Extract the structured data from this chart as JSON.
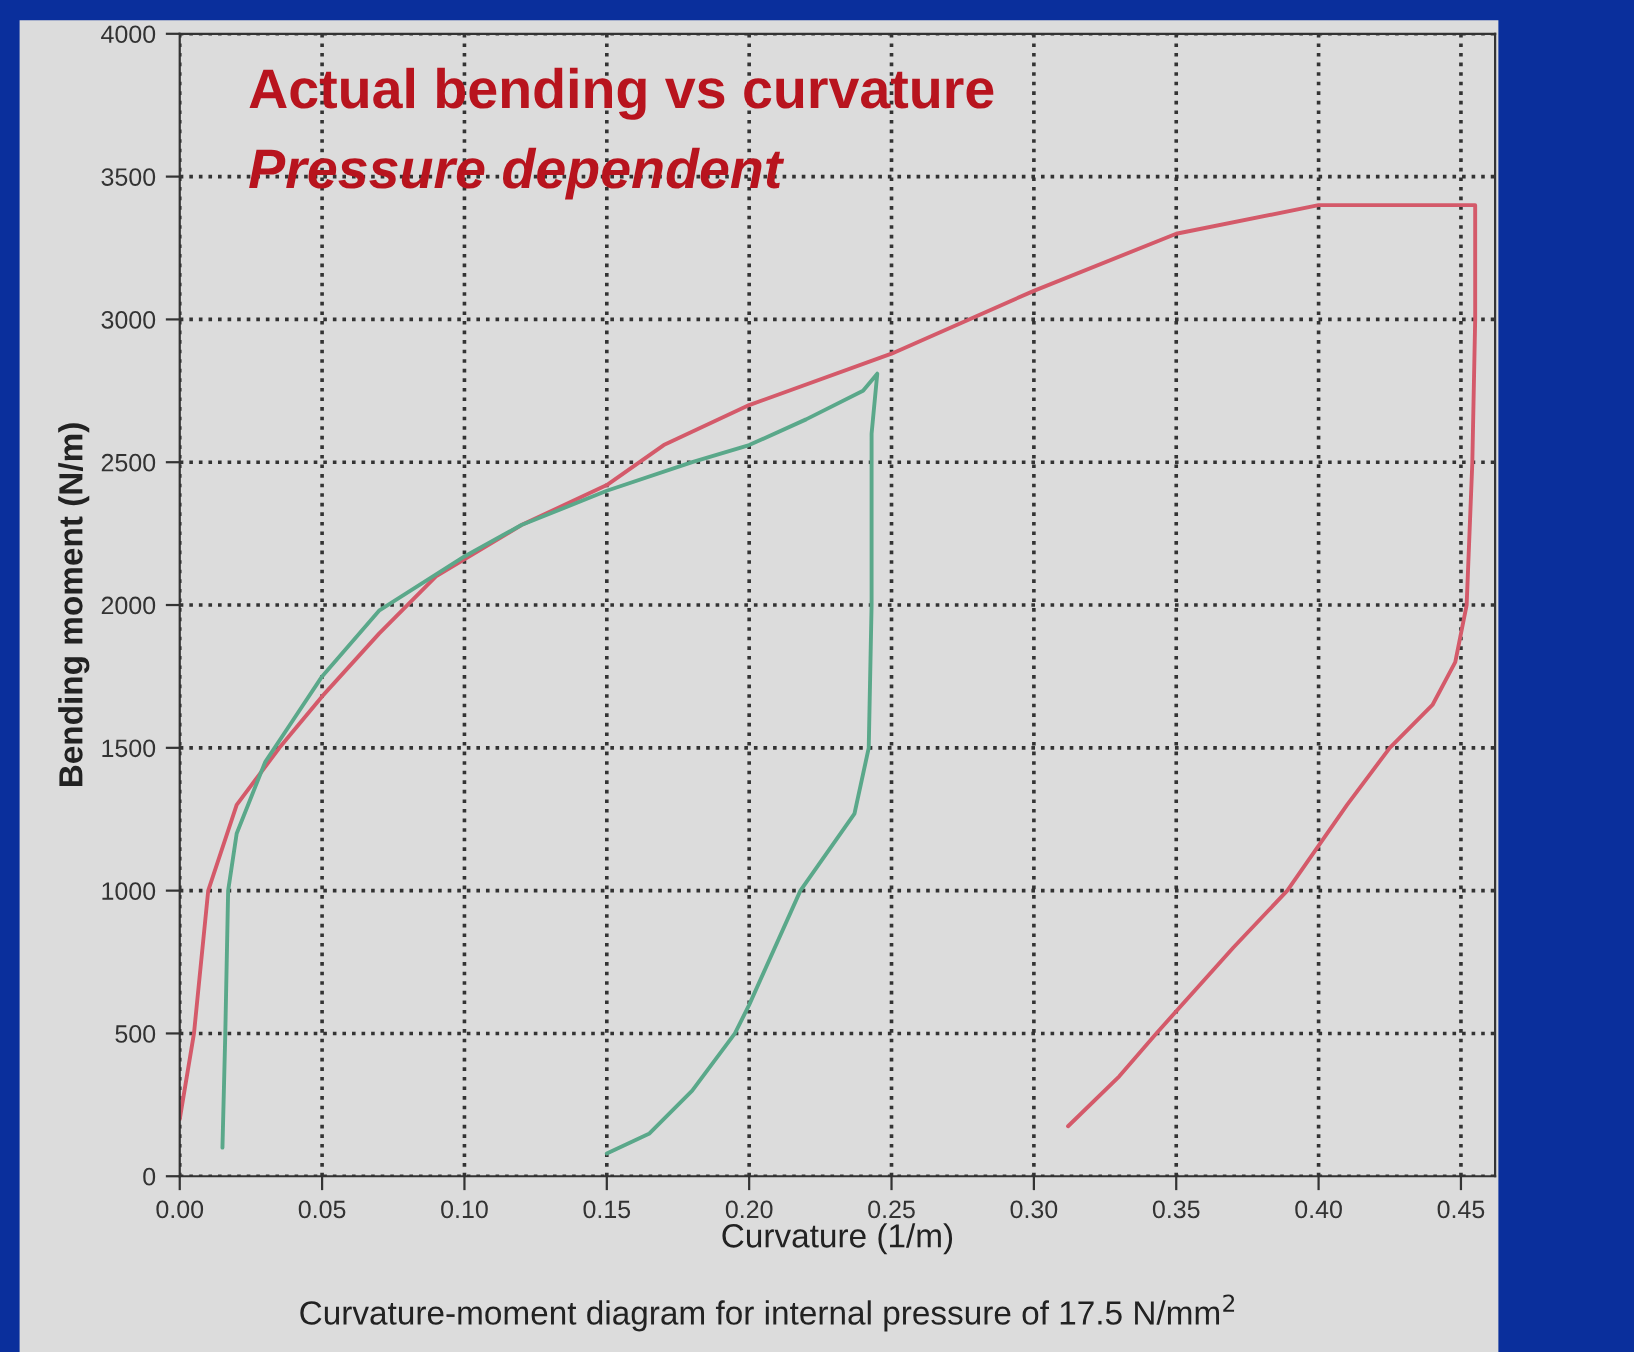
{
  "chart_data": {
    "type": "line",
    "title": "Actual bending vs curvature",
    "subtitle": "Pressure dependent",
    "xlabel": "Curvature (1/m)",
    "ylabel": "Bending moment (N/m)",
    "annotations": [
      "Curvature-moment diagram for internal pressure of 17.5 N/mm$^{2}$"
    ],
    "series": [
      {
        "color": "#d45a6a",
        "x": [
          0.0,
          0.005,
          0.01,
          0.02,
          0.035,
          0.05,
          0.07,
          0.09,
          0.12,
          0.15,
          0.17,
          0.2,
          0.25,
          0.3,
          0.35,
          0.4,
          0.455,
          0.455,
          0.454,
          0.452,
          0.448,
          0.44,
          0.425,
          0.41,
          0.389,
          0.37,
          0.343,
          0.33,
          0.312
        ],
        "values": [
          200,
          500,
          1000,
          1300,
          1500,
          1680,
          1900,
          2100,
          2280,
          2420,
          2560,
          2700,
          2880,
          3100,
          3300,
          3400,
          3400,
          3000,
          2500,
          2000,
          1800,
          1650,
          1500,
          1300,
          1000,
          800,
          500,
          350,
          175
        ]
      },
      {
        "color": "#5aa88a",
        "x": [
          0.015,
          0.016,
          0.017,
          0.02,
          0.03,
          0.04,
          0.05,
          0.07,
          0.1,
          0.12,
          0.15,
          0.18,
          0.2,
          0.22,
          0.24,
          0.245,
          0.243,
          0.243,
          0.242,
          0.237,
          0.218,
          0.2,
          0.195,
          0.18,
          0.165,
          0.15
        ],
        "values": [
          100,
          500,
          1000,
          1200,
          1450,
          1600,
          1750,
          1980,
          2170,
          2280,
          2400,
          2500,
          2560,
          2650,
          2750,
          2810,
          2600,
          2000,
          1500,
          1270,
          1000,
          600,
          500,
          300,
          150,
          80
        ]
      }
    ],
    "xlim": [
      0,
      0.462
    ],
    "ylim": [
      0,
      4000
    ],
    "xticks": [
      {
        "value": 0,
        "label": "0.00"
      },
      0.05,
      {
        "value": 0.1,
        "label": "0.10"
      },
      0.15,
      {
        "value": 0.2,
        "label": "0.20"
      },
      0.25,
      {
        "value": 0.3,
        "label": "0.30"
      },
      0.35,
      {
        "value": 0.4,
        "label": "0.40"
      },
      0.45
    ],
    "yticks": [
      0,
      500,
      1000,
      1500,
      2000,
      2500,
      3000,
      3500,
      4000
    ],
    "grid": true,
    "legend": false,
    "marker": "none",
    "line_style": "solid"
  }
}
